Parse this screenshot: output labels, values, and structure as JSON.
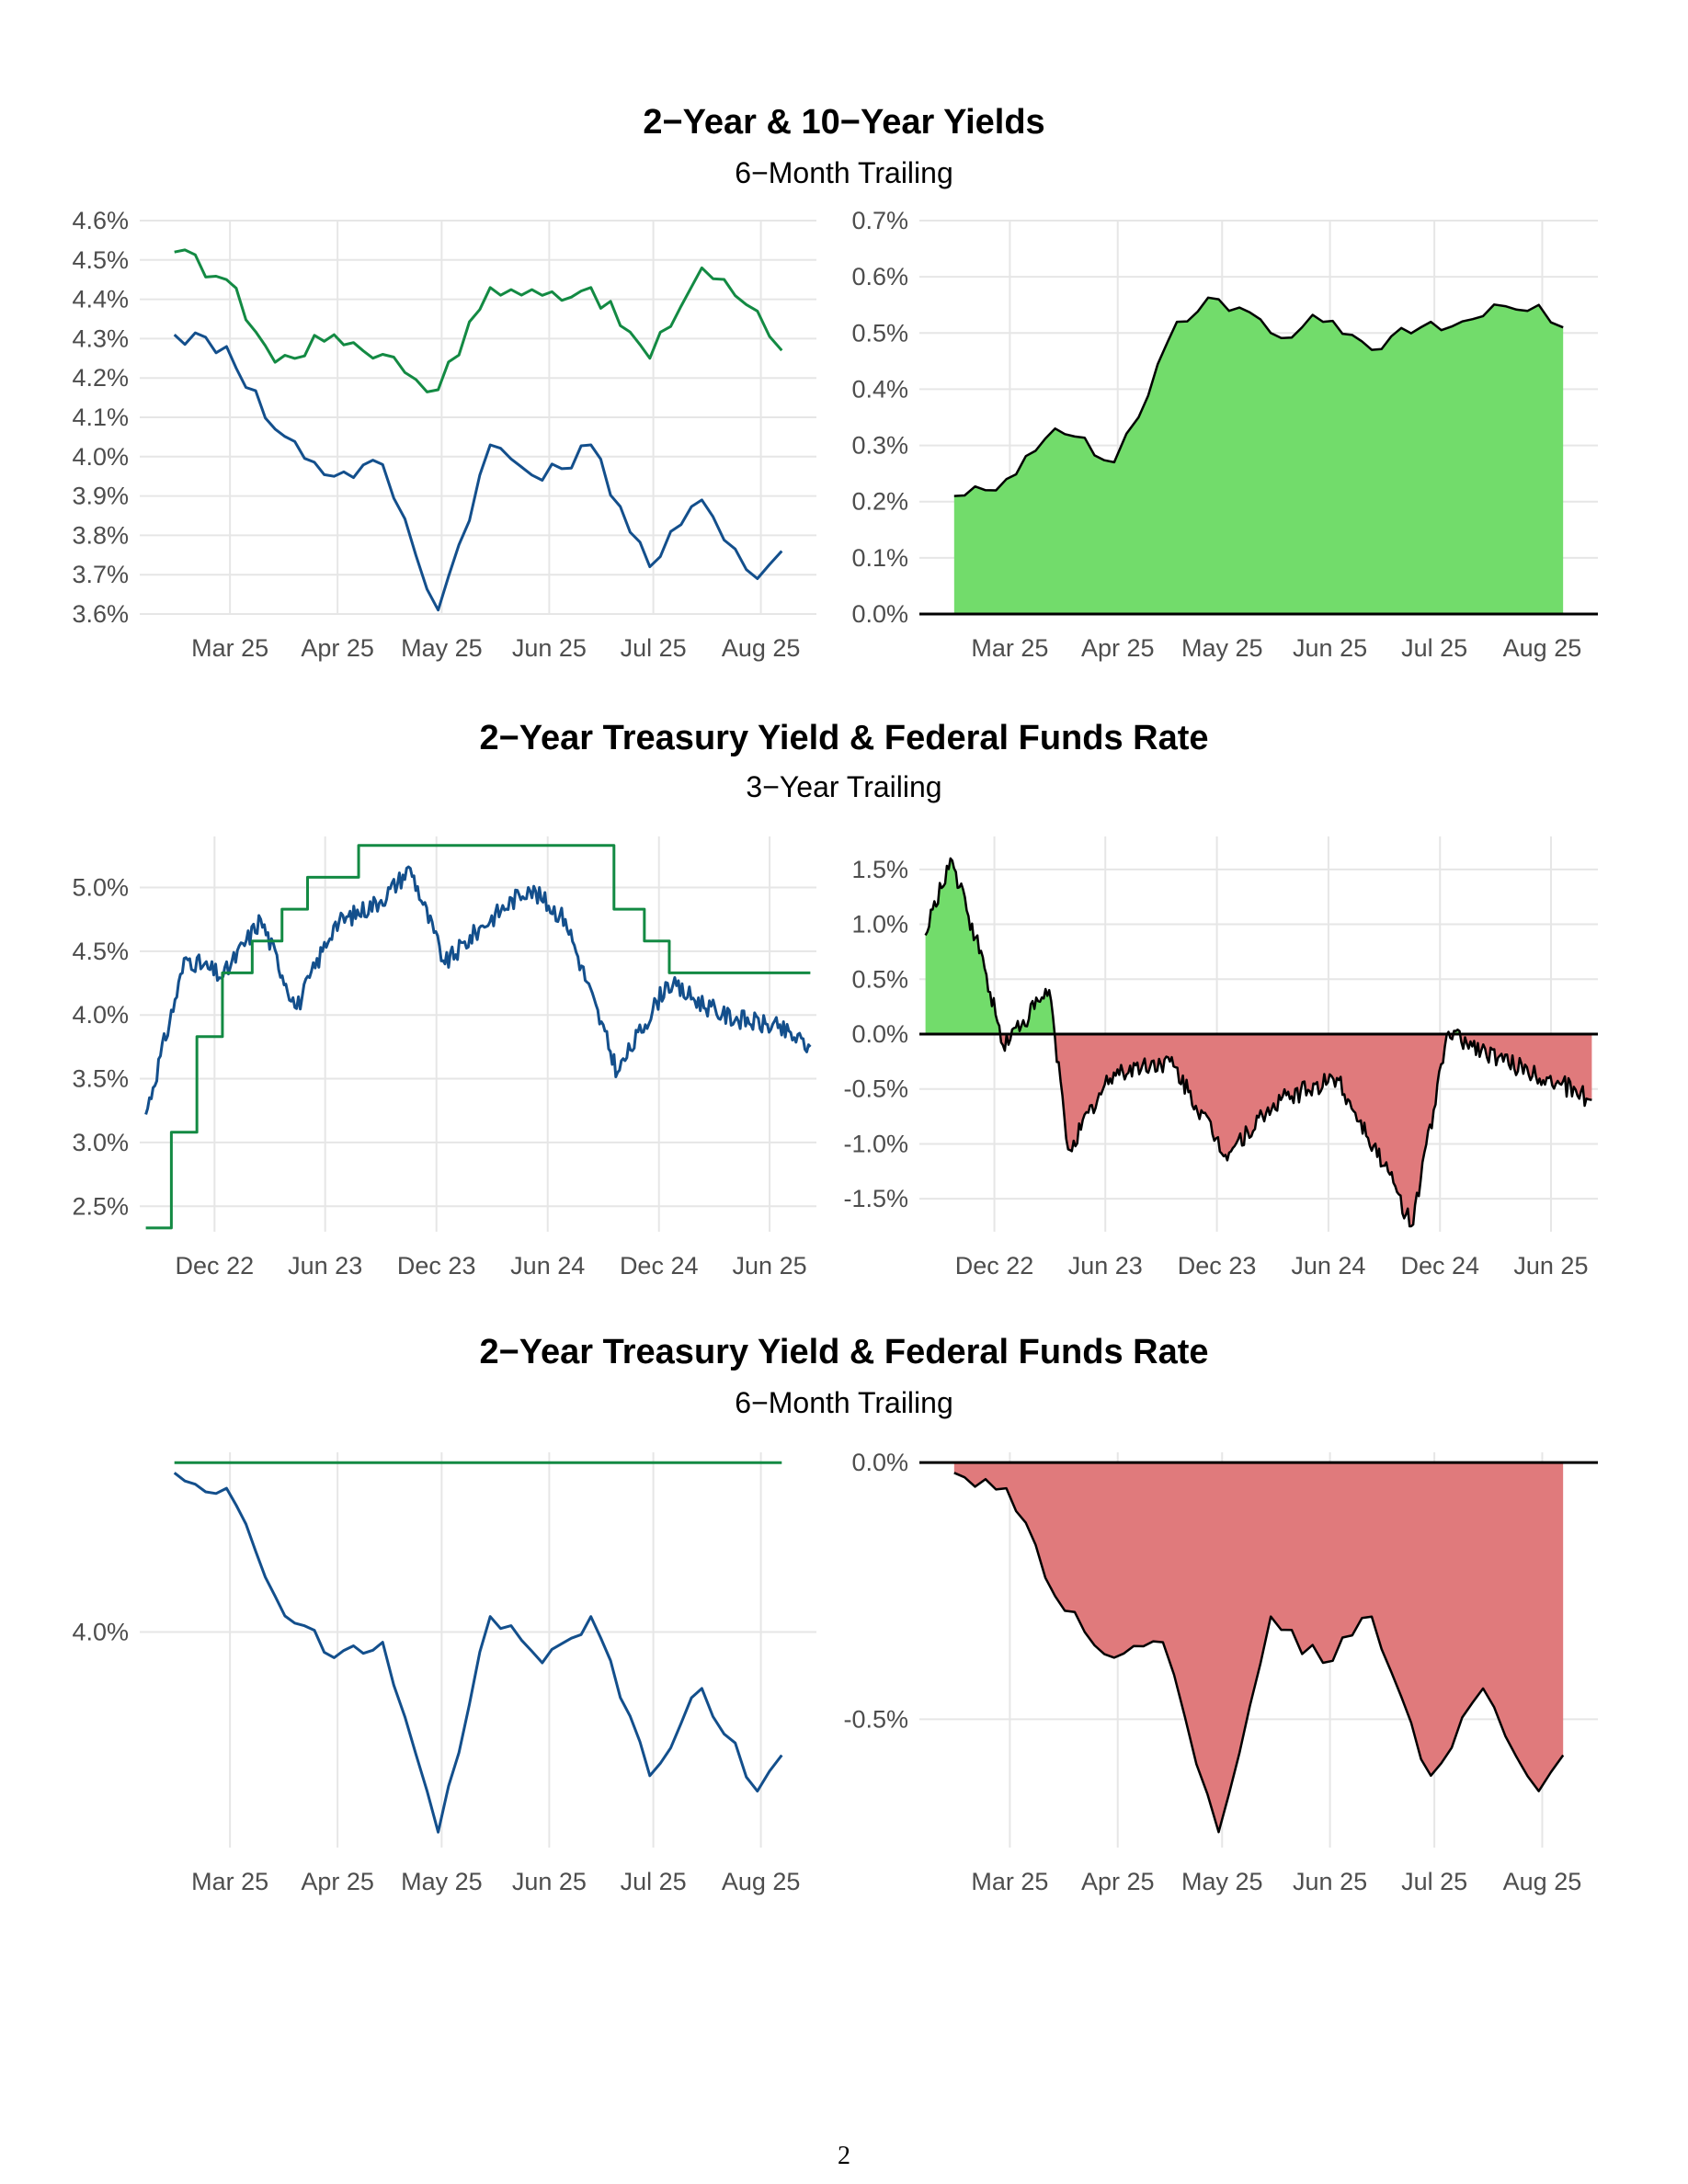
{
  "page_number": "2",
  "sections": [
    {
      "title": "2−Year & 10−Year Yields",
      "subtitle": "6−Month Trailing"
    },
    {
      "title": "2−Year Treasury Yield & Federal Funds Rate",
      "subtitle": "3−Year Trailing"
    },
    {
      "title": "2−Year Treasury Yield & Federal Funds Rate",
      "subtitle": "6−Month Trailing"
    }
  ],
  "colors": {
    "ten_year": "#138a43",
    "two_year": "#134f8c",
    "fed_funds": "#138a43",
    "spread_positive": "#72dc6b",
    "spread_negative": "#e07a7c",
    "outline": "#000000"
  },
  "chart_data": [
    {
      "id": "c1",
      "type": "line",
      "x_dates": [
        "2025-02-13",
        "2025-02-28",
        "2025-03-14",
        "2025-03-31",
        "2025-04-14",
        "2025-04-30",
        "2025-05-15",
        "2025-05-30",
        "2025-06-13",
        "2025-06-30",
        "2025-07-15",
        "2025-07-31",
        "2025-08-07"
      ],
      "series": [
        {
          "key": "ten_year",
          "values": [
            4.52,
            4.45,
            4.24,
            4.31,
            4.26,
            4.17,
            4.43,
            4.41,
            4.43,
            4.25,
            4.48,
            4.37,
            4.27
          ]
        },
        {
          "key": "two_year",
          "values": [
            4.31,
            4.28,
            4.07,
            3.95,
            3.98,
            3.61,
            4.03,
            3.94,
            4.03,
            3.72,
            3.89,
            3.69,
            3.76
          ]
        }
      ],
      "ylim": [
        3.6,
        4.6
      ],
      "yticks": [
        "4.6%",
        "4.5%",
        "4.4%",
        "4.3%",
        "4.2%",
        "4.1%",
        "4.0%",
        "3.9%",
        "3.8%",
        "3.7%",
        "3.6%"
      ],
      "xticks": [
        "Mar 25",
        "Apr 25",
        "May 25",
        "Jun 25",
        "Jul 25",
        "Aug 25"
      ]
    },
    {
      "id": "c2",
      "type": "area",
      "x_dates": [
        "2025-02-13",
        "2025-02-28",
        "2025-03-14",
        "2025-03-31",
        "2025-04-07",
        "2025-04-18",
        "2025-04-30",
        "2025-05-15",
        "2025-05-30",
        "2025-06-13",
        "2025-06-30",
        "2025-07-15",
        "2025-07-31",
        "2025-08-07"
      ],
      "values": [
        0.21,
        0.24,
        0.33,
        0.27,
        0.35,
        0.52,
        0.56,
        0.5,
        0.52,
        0.47,
        0.52,
        0.53,
        0.55,
        0.51
      ],
      "ylim": [
        0.0,
        0.7
      ],
      "yticks": [
        "0.7%",
        "0.6%",
        "0.5%",
        "0.4%",
        "0.3%",
        "0.2%",
        "0.1%",
        "0.0%"
      ],
      "xticks": [
        "Mar 25",
        "Apr 25",
        "May 25",
        "Jun 25",
        "Jul 25",
        "Aug 25"
      ]
    },
    {
      "id": "c3",
      "type": "line",
      "x_dates": [
        "2022-08-10",
        "2022-10-15",
        "2022-12-15",
        "2023-02-15",
        "2023-04-15",
        "2023-06-15",
        "2023-09-01",
        "2023-10-19",
        "2023-12-15",
        "2024-02-15",
        "2024-04-30",
        "2024-06-30",
        "2024-09-24",
        "2024-12-15",
        "2025-03-15",
        "2025-06-15",
        "2025-08-07"
      ],
      "series": [
        {
          "key": "two_year",
          "values": [
            3.22,
            4.45,
            4.3,
            4.75,
            4.05,
            4.7,
            4.9,
            5.15,
            4.4,
            4.7,
            5.0,
            4.75,
            3.55,
            4.25,
            4.0,
            3.9,
            3.75
          ]
        },
        {
          "key": "fed_funds",
          "step": true,
          "dates": [
            "2022-08-10",
            "2022-09-21",
            "2022-11-02",
            "2022-12-14",
            "2023-02-01",
            "2023-03-22",
            "2023-05-03",
            "2023-07-26",
            "2024-09-18",
            "2024-11-07",
            "2024-12-18",
            "2025-08-07"
          ],
          "values": [
            2.33,
            3.08,
            3.83,
            4.33,
            4.58,
            4.83,
            5.08,
            5.33,
            4.83,
            4.58,
            4.33,
            4.33
          ]
        }
      ],
      "ylim": [
        2.3,
        5.4
      ],
      "yticks": [
        "5.0%",
        "4.5%",
        "4.0%",
        "3.5%",
        "3.0%",
        "2.5%"
      ],
      "xticks": [
        "Dec 22",
        "Jun 23",
        "Dec 23",
        "Jun 24",
        "Dec 24",
        "Jun 25"
      ]
    },
    {
      "id": "c4",
      "type": "area",
      "x_dates": [
        "2022-08-10",
        "2022-09-20",
        "2022-11-15",
        "2022-12-15",
        "2023-03-01",
        "2023-04-01",
        "2023-06-15",
        "2023-09-15",
        "2023-12-15",
        "2024-03-15",
        "2024-06-15",
        "2024-09-01",
        "2024-10-15",
        "2024-12-15",
        "2025-03-15",
        "2025-06-15",
        "2025-08-07"
      ],
      "values": [
        0.9,
        1.6,
        0.6,
        -0.1,
        0.4,
        -1.05,
        -0.35,
        -0.25,
        -1.1,
        -0.6,
        -0.4,
        -1.2,
        -1.75,
        0.02,
        -0.25,
        -0.45,
        -0.6
      ],
      "ylim": [
        -1.8,
        1.8
      ],
      "yticks": [
        "1.5%",
        "1.0%",
        "0.5%",
        "0.0%",
        "-0.5%",
        "-1.0%",
        "-1.5%"
      ],
      "xticks": [
        "Dec 22",
        "Jun 23",
        "Dec 23",
        "Jun 24",
        "Dec 24",
        "Jun 25"
      ]
    },
    {
      "id": "c5",
      "type": "line",
      "x_dates": [
        "2025-02-13",
        "2025-02-28",
        "2025-03-14",
        "2025-03-31",
        "2025-04-14",
        "2025-04-30",
        "2025-05-15",
        "2025-05-30",
        "2025-06-13",
        "2025-06-30",
        "2025-07-15",
        "2025-07-31",
        "2025-08-07"
      ],
      "series": [
        {
          "key": "fed_funds",
          "values": [
            4.33,
            4.33,
            4.33,
            4.33,
            4.33,
            4.33,
            4.33,
            4.33,
            4.33,
            4.33,
            4.33,
            4.33,
            4.33
          ]
        },
        {
          "key": "two_year",
          "values": [
            4.31,
            4.28,
            4.07,
            3.95,
            3.98,
            3.61,
            4.03,
            3.94,
            4.03,
            3.72,
            3.89,
            3.69,
            3.76
          ]
        }
      ],
      "ylim": [
        3.58,
        4.35
      ],
      "yticks": [
        "4.0%"
      ],
      "xticks": [
        "Mar 25",
        "Apr 25",
        "May 25",
        "Jun 25",
        "Jul 25",
        "Aug 25"
      ]
    },
    {
      "id": "c6",
      "type": "area",
      "x_dates": [
        "2025-02-13",
        "2025-02-28",
        "2025-03-14",
        "2025-03-31",
        "2025-04-14",
        "2025-04-30",
        "2025-05-15",
        "2025-05-30",
        "2025-06-13",
        "2025-06-30",
        "2025-07-15",
        "2025-07-31",
        "2025-08-07"
      ],
      "values": [
        -0.02,
        -0.05,
        -0.26,
        -0.38,
        -0.35,
        -0.72,
        -0.3,
        -0.39,
        -0.3,
        -0.61,
        -0.44,
        -0.64,
        -0.57
      ],
      "ylim": [
        -0.75,
        0.02
      ],
      "yticks": [
        "0.0%",
        "-0.5%"
      ],
      "xticks": [
        "Mar 25",
        "Apr 25",
        "May 25",
        "Jun 25",
        "Jul 25",
        "Aug 25"
      ]
    }
  ]
}
